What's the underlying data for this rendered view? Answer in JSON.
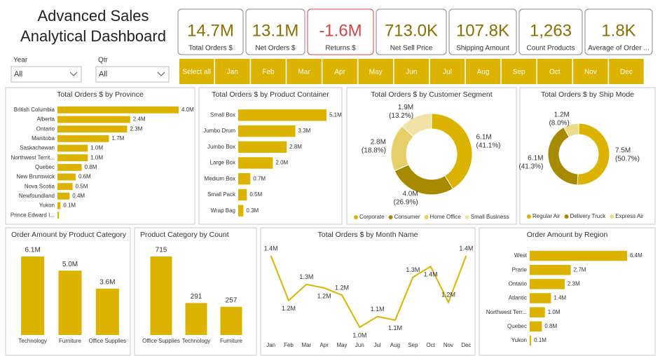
{
  "title": "Advanced Sales Analytical Dashboard",
  "slicers": [
    {
      "label": "Year",
      "value": "All"
    },
    {
      "label": "Qtr",
      "value": "All"
    }
  ],
  "kpis": [
    {
      "value": "14.7M",
      "label": "Total Orders $"
    },
    {
      "value": "13.1M",
      "label": "Net Orders $"
    },
    {
      "value": "-1.6M",
      "label": "Returns $",
      "color": "#d64545"
    },
    {
      "value": "713.0K",
      "label": "Net Sell Price"
    },
    {
      "value": "107.8K",
      "label": "Shipping Amount"
    },
    {
      "value": "1,263",
      "label": "Count Products"
    },
    {
      "value": "1.8K",
      "label": "Average of Order ..."
    }
  ],
  "month_buttons": [
    "Select all",
    "Jan",
    "Feb",
    "Mar",
    "Apr",
    "May",
    "Jun",
    "Jul",
    "Aug",
    "Sep",
    "Oct",
    "Nov",
    "Dec"
  ],
  "chart_data": [
    {
      "type": "bar",
      "orientation": "horizontal",
      "title": "Total Orders $ by Province",
      "color": "#dbb300",
      "categories": [
        "British Columbia",
        "Alberta",
        "Ontario",
        "Manitoba",
        "Saskachewan",
        "Northwest Territ...",
        "Quebec",
        "New Brunswick",
        "Nova Scotia",
        "Newfoundland",
        "Yukon",
        "Prince Edward I..."
      ],
      "values": [
        4000000,
        2400000,
        2300000,
        1700000,
        1000000,
        1000000,
        800000,
        600000,
        500000,
        400000,
        100000,
        50000
      ],
      "value_labels": [
        "4.0M",
        "2.4M",
        "2.3M",
        "1.7M",
        "1.0M",
        "1.0M",
        "0.8M",
        "0.6M",
        "0.5M",
        "0.4M",
        "0.1M",
        null
      ]
    },
    {
      "type": "bar",
      "orientation": "horizontal",
      "title": "Total Orders $ by Product Container",
      "color": "#dbb300",
      "categories": [
        "Small Box",
        "Jumbo Drum",
        "Jumbo Box",
        "Large Box",
        "Medium Box",
        "Small Pack",
        "Wrap Bag"
      ],
      "values": [
        5100000,
        3300000,
        2800000,
        2000000,
        700000,
        500000,
        300000
      ],
      "value_labels": [
        "5.1M",
        "3.3M",
        "2.8M",
        "2.0M",
        "0.7M",
        "0.5M",
        "0.3M"
      ]
    },
    {
      "type": "donut",
      "title": "Total Orders $ by Customer Segment",
      "categories": [
        "Corporate",
        "Consumer",
        "Home Office",
        "Small Business"
      ],
      "values": [
        6100000,
        4000000,
        2800000,
        1900000
      ],
      "value_labels": [
        "6.1M",
        "4.0M",
        "2.8M",
        "1.9M"
      ],
      "percent_labels": [
        "(41.1%)",
        "(26.9%)",
        "(18.8%)",
        "(13.2%)"
      ],
      "colors": [
        "#dbb300",
        "#a88a00",
        "#e6cf68",
        "#f1e3a6"
      ]
    },
    {
      "type": "donut",
      "title": "Total Orders $ by Ship Mode",
      "categories": [
        "Regular Air",
        "Delivery Truck",
        "Express Air"
      ],
      "values": [
        7500000,
        6100000,
        1200000
      ],
      "value_labels": [
        "7.5M",
        "6.1M",
        "1.2M"
      ],
      "percent_labels": [
        "(50.7%)",
        "(41.3%)",
        "(8.0%)"
      ],
      "colors": [
        "#dbb300",
        "#a88a00",
        "#eedc8a"
      ]
    },
    {
      "type": "bar",
      "orientation": "vertical",
      "title": "Order Amount by Product Category",
      "color": "#dbb300",
      "categories": [
        "Technology",
        "Furniture",
        "Office Supplies"
      ],
      "values": [
        6100000,
        5000000,
        3600000
      ],
      "value_labels": [
        "6.1M",
        "5.0M",
        "3.6M"
      ]
    },
    {
      "type": "bar",
      "orientation": "vertical",
      "title": "Product Category by Count",
      "color": "#dbb300",
      "categories": [
        "Office Supplies",
        "Technology",
        "Furniture"
      ],
      "values": [
        715,
        291,
        257
      ]
    },
    {
      "type": "line",
      "title": "Total Orders $ by Month Name",
      "color": "#dbb300",
      "categories": [
        "Jan",
        "Feb",
        "Mar",
        "Apr",
        "May",
        "Jun",
        "Jul",
        "Aug",
        "Sep",
        "Oct",
        "Nov",
        "Dec"
      ],
      "values": [
        1420000,
        1170000,
        1260000,
        1240000,
        1200000,
        1020000,
        1080000,
        1060000,
        1300000,
        1360000,
        1160000,
        1420000
      ],
      "value_labels": [
        "1.4M",
        "1.2M",
        "1.3M",
        "1.2M",
        "1.2M",
        "1.0M",
        "1.1M",
        "1.1M",
        "1.3M",
        "1.4M",
        "1.2M",
        "1.4M"
      ]
    },
    {
      "type": "bar",
      "orientation": "horizontal",
      "title": "Order Amount by Region",
      "color": "#dbb300",
      "categories": [
        "West",
        "Prarie",
        "Ontario",
        "Atlantic",
        "Northwest Terr...",
        "Quebec",
        "Yukon"
      ],
      "values": [
        6400000,
        2700000,
        2300000,
        1400000,
        1000000,
        800000,
        100000
      ],
      "value_labels": [
        "6.4M",
        "2.7M",
        "2.3M",
        "1.4M",
        "1.0M",
        "0.8M",
        "0.1M"
      ]
    }
  ]
}
